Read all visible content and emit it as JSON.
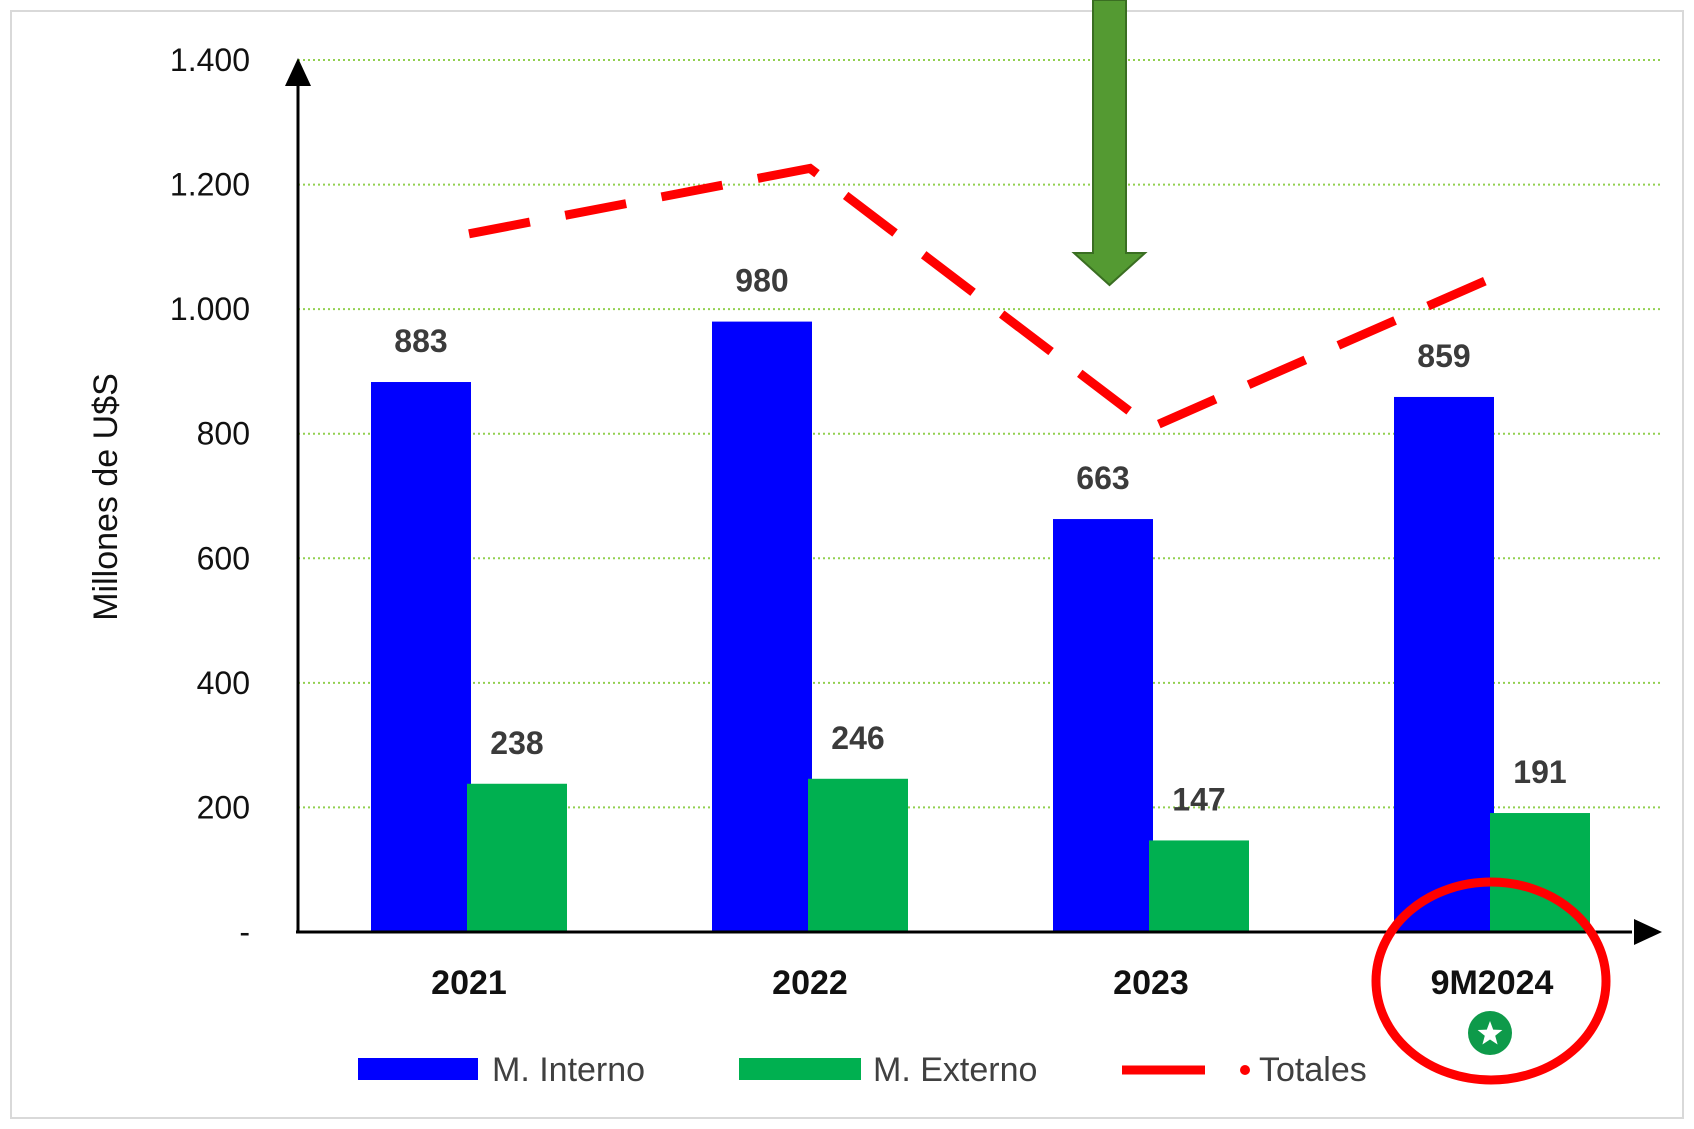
{
  "colors": {
    "interno": "#0000ff",
    "externo": "#00b050",
    "totales": "#ff0000",
    "gridline": "#92d050",
    "arrow": "#549a32",
    "highlight_circle": "#ff0000",
    "badge": "#0e9a4a"
  },
  "chart_data": {
    "type": "bar",
    "categories": [
      "2021",
      "2022",
      "2023",
      "9M2024"
    ],
    "series": [
      {
        "name": "M. Interno",
        "values": [
          883,
          980,
          663,
          859
        ]
      },
      {
        "name": "M. Externo",
        "values": [
          238,
          246,
          147,
          191
        ]
      },
      {
        "name": "Totales",
        "type": "line",
        "style": "dashed",
        "values": [
          1121,
          1226,
          810,
          1050
        ]
      }
    ],
    "ylabel": "Millones de U$S",
    "xlabel": "",
    "ylim": [
      0,
      1400
    ],
    "yticks": [
      {
        "value": 0,
        "label": "-"
      },
      {
        "value": 200,
        "label": "200"
      },
      {
        "value": 400,
        "label": "400"
      },
      {
        "value": 600,
        "label": "600"
      },
      {
        "value": 800,
        "label": "800"
      },
      {
        "value": 1000,
        "label": "1.000"
      },
      {
        "value": 1200,
        "label": "1.200"
      },
      {
        "value": 1400,
        "label": "1.400"
      }
    ],
    "grid": true,
    "grid_style": "dotted horizontal",
    "legend_placement": "bottom",
    "annotations": [
      {
        "type": "down-arrow",
        "target": "2023"
      },
      {
        "type": "circle",
        "target": "9M2024"
      },
      {
        "type": "star-badge",
        "target": "9M2024"
      }
    ]
  },
  "icons": {
    "arrow": "down-arrow-icon",
    "badge": "star-badge-icon"
  }
}
